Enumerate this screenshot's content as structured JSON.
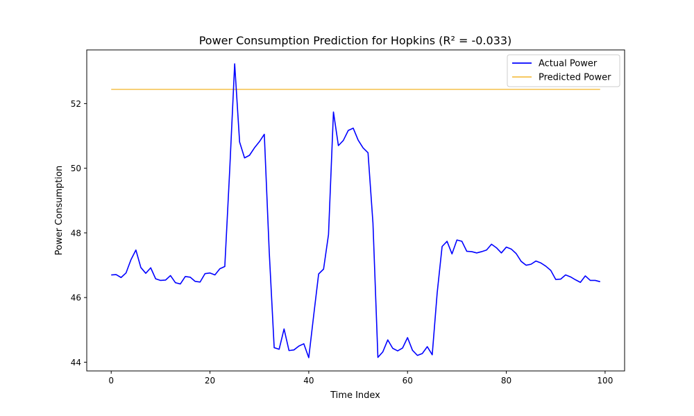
{
  "chart_data": {
    "type": "line",
    "title": "Power Consumption Prediction for Hopkins (R² = -0.033)",
    "xlabel": "Time Index",
    "ylabel": "Power Consumption",
    "xlim": [
      -4.95,
      103.95
    ],
    "ylim": [
      43.73,
      53.66
    ],
    "xticks": [
      0,
      20,
      40,
      60,
      80,
      100
    ],
    "yticks": [
      44,
      46,
      48,
      50,
      52
    ],
    "grid": false,
    "legend_position": "top-right",
    "x": [
      0,
      1,
      2,
      3,
      4,
      5,
      6,
      7,
      8,
      9,
      10,
      11,
      12,
      13,
      14,
      15,
      16,
      17,
      18,
      19,
      20,
      21,
      22,
      23,
      24,
      25,
      26,
      27,
      28,
      29,
      30,
      31,
      32,
      33,
      34,
      35,
      36,
      37,
      38,
      39,
      40,
      41,
      42,
      43,
      44,
      45,
      46,
      47,
      48,
      49,
      50,
      51,
      52,
      53,
      54,
      55,
      56,
      57,
      58,
      59,
      60,
      61,
      62,
      63,
      64,
      65,
      66,
      67,
      68,
      69,
      70,
      71,
      72,
      73,
      74,
      75,
      76,
      77,
      78,
      79,
      80,
      81,
      82,
      83,
      84,
      85,
      86,
      87,
      88,
      89,
      90,
      91,
      92,
      93,
      94,
      95,
      96,
      97,
      98,
      99
    ],
    "series": [
      {
        "name": "Actual Power",
        "color": "#0000ff",
        "values": [
          46.7,
          46.71,
          46.62,
          46.76,
          47.17,
          47.47,
          46.93,
          46.75,
          46.92,
          46.58,
          46.53,
          46.54,
          46.68,
          46.46,
          46.42,
          46.65,
          46.63,
          46.5,
          46.48,
          46.74,
          46.76,
          46.7,
          46.89,
          46.96,
          49.96,
          53.23,
          50.81,
          50.32,
          50.4,
          50.63,
          50.82,
          51.05,
          47.41,
          44.45,
          44.4,
          45.03,
          44.36,
          44.38,
          44.5,
          44.57,
          44.14,
          45.45,
          46.73,
          46.88,
          47.95,
          51.74,
          50.7,
          50.86,
          51.17,
          51.24,
          50.87,
          50.63,
          50.48,
          48.3,
          44.15,
          44.32,
          44.69,
          44.43,
          44.35,
          44.44,
          44.76,
          44.37,
          44.21,
          44.27,
          44.48,
          44.23,
          46.14,
          47.58,
          47.74,
          47.35,
          47.78,
          47.74,
          47.43,
          47.42,
          47.38,
          47.42,
          47.47,
          47.65,
          47.54,
          47.38,
          47.56,
          47.5,
          47.36,
          47.12,
          47.0,
          47.03,
          47.13,
          47.07,
          46.97,
          46.84,
          46.56,
          46.57,
          46.7,
          46.64,
          46.55,
          46.47,
          46.67,
          46.53,
          46.53,
          46.49
        ]
      },
      {
        "name": "Predicted Power",
        "color": "#f5c04a",
        "values": [
          52.44,
          52.44,
          52.44,
          52.44,
          52.44,
          52.44,
          52.44,
          52.44,
          52.44,
          52.44,
          52.44,
          52.44,
          52.44,
          52.44,
          52.44,
          52.44,
          52.44,
          52.44,
          52.44,
          52.44,
          52.44,
          52.44,
          52.44,
          52.44,
          52.44,
          52.44,
          52.44,
          52.44,
          52.44,
          52.44,
          52.44,
          52.44,
          52.44,
          52.44,
          52.44,
          52.44,
          52.44,
          52.44,
          52.44,
          52.44,
          52.44,
          52.44,
          52.44,
          52.44,
          52.44,
          52.44,
          52.44,
          52.44,
          52.44,
          52.44,
          52.44,
          52.44,
          52.44,
          52.44,
          52.44,
          52.44,
          52.44,
          52.44,
          52.44,
          52.44,
          52.44,
          52.44,
          52.44,
          52.44,
          52.44,
          52.44,
          52.44,
          52.44,
          52.44,
          52.44,
          52.44,
          52.44,
          52.44,
          52.44,
          52.44,
          52.44,
          52.44,
          52.44,
          52.44,
          52.44,
          52.44,
          52.44,
          52.44,
          52.44,
          52.44,
          52.44,
          52.44,
          52.44,
          52.44,
          52.44,
          52.44,
          52.44,
          52.44,
          52.44,
          52.44,
          52.44,
          52.44,
          52.44,
          52.44,
          52.44
        ]
      }
    ]
  }
}
